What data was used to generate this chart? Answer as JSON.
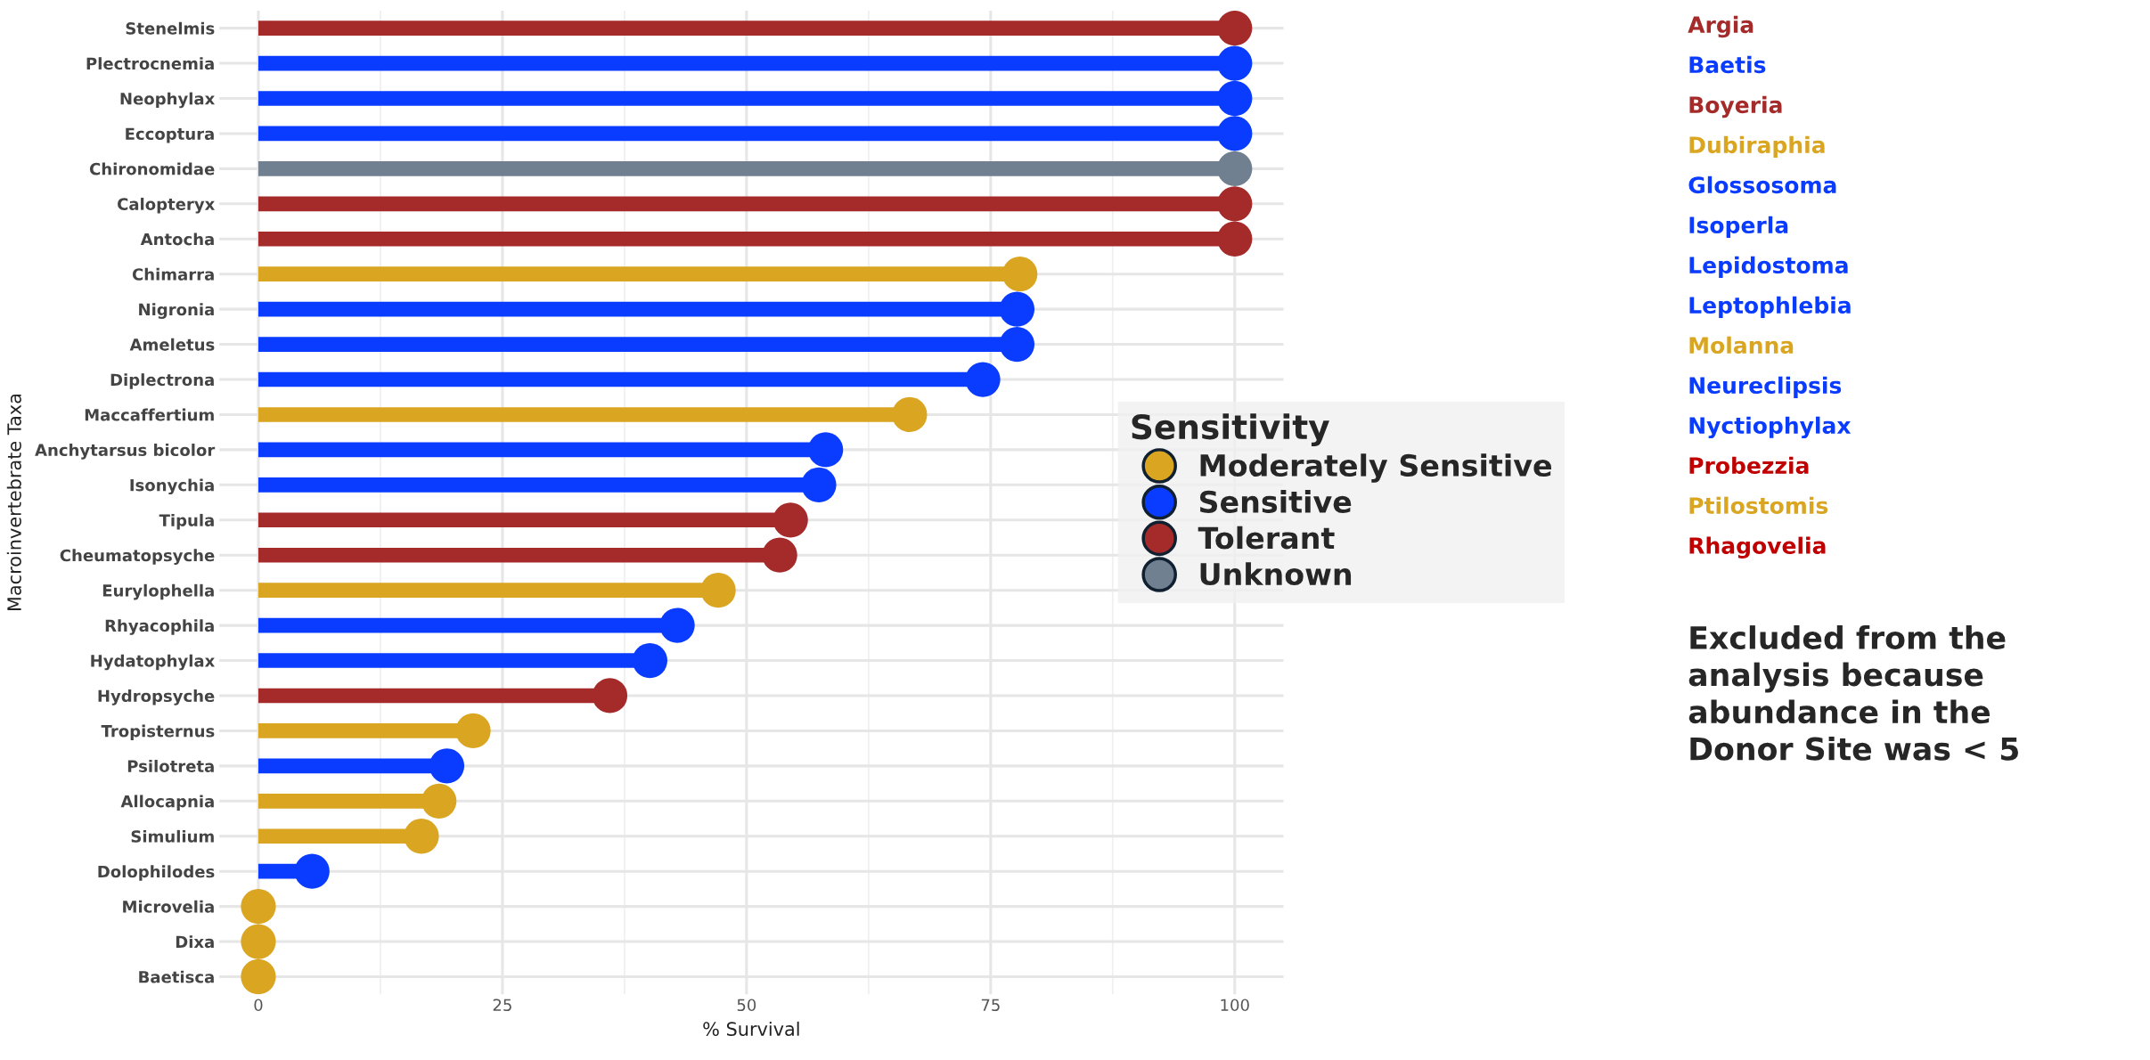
{
  "chart_data": [
    {
      "type": "lollipop",
      "orientation": "horizontal",
      "xlabel": "% Survival",
      "ylabel": "Macroinvertebrate Taxa",
      "legend_title": "Sensitivity",
      "legend": "right",
      "grid": true,
      "marker": "circle",
      "categories": [
        "Stenelmis",
        "Plectrocnemia",
        "Neophylax",
        "Eccoptura",
        "Chironomidae",
        "Calopteryx",
        "Antocha",
        "Chimarra",
        "Nigronia",
        "Ameletus",
        "Diplectrona",
        "Maccaffertium",
        "Anchytarsus bicolor",
        "Isonychia",
        "Tipula",
        "Cheumatopsyche",
        "Eurylophella",
        "Rhyacophila",
        "Hydatophylax",
        "Hydropsyche",
        "Tropisternus",
        "Psilotreta",
        "Allocapnia",
        "Simulium",
        "Dolophilodes",
        "Microvelia",
        "Dixa",
        "Baetisca"
      ],
      "xlim": [
        -4,
        105
      ],
      "xticks": [
        0,
        25,
        50,
        75,
        100
      ],
      "series": [
        {
          "name": "Moderately Sensitive",
          "color": "#daa520",
          "values": [
            null,
            null,
            null,
            null,
            null,
            null,
            null,
            78,
            null,
            null,
            null,
            66.7,
            null,
            null,
            null,
            null,
            47.1,
            null,
            null,
            null,
            22,
            null,
            18.5,
            16.7,
            null,
            0,
            0,
            0
          ]
        },
        {
          "name": "Sensitive",
          "color": "#0a3cff",
          "values": [
            null,
            100,
            100,
            100,
            null,
            null,
            null,
            null,
            77.7,
            77.7,
            74.2,
            null,
            58.1,
            57.4,
            null,
            null,
            null,
            42.9,
            40.1,
            null,
            null,
            19.3,
            null,
            null,
            5.5,
            null,
            null,
            null
          ]
        },
        {
          "name": "Tolerant",
          "color": "#a52a2a",
          "values": [
            100,
            null,
            null,
            null,
            null,
            100,
            100,
            null,
            null,
            null,
            null,
            null,
            null,
            null,
            54.5,
            53.4,
            null,
            null,
            null,
            36,
            null,
            null,
            null,
            null,
            null,
            null,
            null,
            null
          ]
        },
        {
          "name": "Unknown",
          "color": "#708090",
          "values": [
            null,
            null,
            null,
            null,
            100,
            null,
            null,
            null,
            null,
            null,
            null,
            null,
            null,
            null,
            null,
            null,
            null,
            null,
            null,
            null,
            null,
            null,
            null,
            null,
            null,
            null,
            null,
            null
          ]
        }
      ]
    },
    {
      "type": "other",
      "categories": [
        "Argia",
        "Baetis",
        "Boyeria",
        "Dubiraphia",
        "Glossosoma",
        "Isoperla",
        "Lepidostoma",
        "Leptophlebia",
        "Molanna",
        "Neureclipsis",
        "Nyctiophylax",
        "Probezzia",
        "Ptilostomis",
        "Rhagovelia"
      ],
      "colors": [
        "#a52a2a",
        "#0a3cff",
        "#a52a2a",
        "#daa520",
        "#0a3cff",
        "#0a3cff",
        "#0a3cff",
        "#0a3cff",
        "#daa520",
        "#0a3cff",
        "#0a3cff",
        "#c00000",
        "#daa520",
        "#c00000"
      ],
      "annotations": [
        "Excluded from the\nanalysis because\nabundance in the\nDonor Site was < 5"
      ]
    }
  ]
}
